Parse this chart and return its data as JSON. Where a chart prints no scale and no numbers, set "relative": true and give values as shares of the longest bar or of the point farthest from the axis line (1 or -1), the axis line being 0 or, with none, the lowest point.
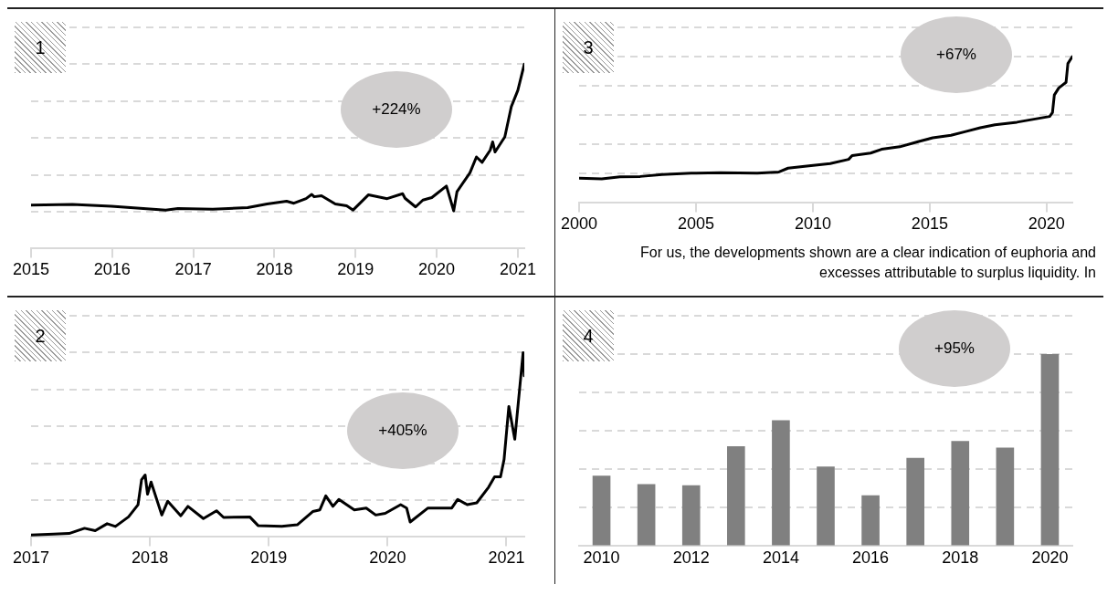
{
  "chart_data": [
    {
      "type": "line",
      "relative": true,
      "color": "#000000",
      "grid": "y",
      "xlim": [
        2015,
        2021.08
      ],
      "xticks": [
        2015,
        2016,
        2017,
        2018,
        2019,
        2020,
        2021
      ],
      "annotations": [
        "1",
        "+224%"
      ],
      "x": [
        2015.0,
        2015.51,
        2015.99,
        2016.66,
        2016.81,
        2017.24,
        2017.67,
        2017.91,
        2018.15,
        2018.24,
        2018.39,
        2018.46,
        2018.49,
        2018.58,
        2018.75,
        2018.89,
        2018.97,
        2019.16,
        2019.39,
        2019.58,
        2019.61,
        2019.74,
        2019.83,
        2019.94,
        2019.99,
        2020.12,
        2020.21,
        2020.25,
        2020.41,
        2020.49,
        2020.56,
        2020.66,
        2020.69,
        2020.72,
        2020.84,
        2020.92,
        2021.0,
        2021.08
      ],
      "values": [
        0.236,
        0.24,
        0.23,
        0.209,
        0.217,
        0.214,
        0.222,
        0.242,
        0.257,
        0.246,
        0.271,
        0.294,
        0.281,
        0.287,
        0.242,
        0.232,
        0.209,
        0.292,
        0.271,
        0.298,
        0.273,
        0.226,
        0.263,
        0.277,
        0.294,
        0.339,
        0.205,
        0.308,
        0.411,
        0.497,
        0.468,
        0.534,
        0.579,
        0.524,
        0.606,
        0.77,
        0.858,
        1.0
      ]
    },
    {
      "type": "line",
      "relative": true,
      "color": "#000000",
      "grid": "y",
      "xlim": [
        2000,
        2021.1
      ],
      "xticks": [
        2000,
        2005,
        2010,
        2015,
        2020
      ],
      "annotations": [
        "3",
        "+67%",
        "For us, the developments shown are a clear indication of euphoria and excesses attributable to surplus liquidity. In"
      ],
      "x": [
        2000.0,
        2000.97,
        2001.75,
        2002.61,
        2003.55,
        2004.8,
        2006.05,
        2007.62,
        2008.55,
        2008.94,
        2009.65,
        2010.74,
        2011.53,
        2011.68,
        2012.47,
        2012.94,
        2013.72,
        2014.5,
        2015.13,
        2015.91,
        2016.54,
        2017.16,
        2017.79,
        2018.73,
        2019.51,
        2020.13,
        2020.25,
        2020.33,
        2020.52,
        2020.83,
        2020.91,
        2021.1
      ],
      "values": [
        0.169,
        0.164,
        0.178,
        0.181,
        0.195,
        0.203,
        0.207,
        0.203,
        0.212,
        0.238,
        0.25,
        0.269,
        0.298,
        0.324,
        0.341,
        0.367,
        0.384,
        0.419,
        0.445,
        0.462,
        0.488,
        0.514,
        0.534,
        0.552,
        0.574,
        0.591,
        0.617,
        0.738,
        0.786,
        0.824,
        0.953,
        1.0
      ]
    },
    {
      "type": "line",
      "relative": true,
      "color": "#000000",
      "grid": "y",
      "xlim": [
        2017,
        2021.15
      ],
      "xticks": [
        2017,
        2018,
        2019,
        2020,
        2021
      ],
      "annotations": [
        "2",
        "+405%"
      ],
      "x": [
        2017.0,
        2017.19,
        2017.32,
        2017.45,
        2017.54,
        2017.64,
        2017.71,
        2017.82,
        2017.9,
        2017.93,
        2017.96,
        2017.98,
        2018.01,
        2018.1,
        2018.15,
        2018.26,
        2018.32,
        2018.45,
        2018.56,
        2018.62,
        2018.84,
        2018.91,
        2019.11,
        2019.24,
        2019.37,
        2019.43,
        2019.48,
        2019.54,
        2019.59,
        2019.72,
        2019.82,
        2019.9,
        2019.98,
        2020.11,
        2020.16,
        2020.19,
        2020.34,
        2020.54,
        2020.59,
        2020.67,
        2020.75,
        2020.85,
        2020.9,
        2020.95,
        2020.98,
        2021.02,
        2021.07,
        2021.11,
        2021.14,
        2021.15
      ],
      "values": [
        0.011,
        0.015,
        0.019,
        0.047,
        0.034,
        0.072,
        0.057,
        0.109,
        0.175,
        0.311,
        0.336,
        0.232,
        0.298,
        0.119,
        0.194,
        0.115,
        0.166,
        0.1,
        0.142,
        0.106,
        0.109,
        0.062,
        0.058,
        0.066,
        0.138,
        0.147,
        0.223,
        0.166,
        0.204,
        0.147,
        0.157,
        0.119,
        0.128,
        0.175,
        0.157,
        0.081,
        0.157,
        0.157,
        0.204,
        0.175,
        0.185,
        0.27,
        0.326,
        0.326,
        0.421,
        0.708,
        0.53,
        0.798,
        1.0,
        0.874
      ]
    },
    {
      "type": "bar",
      "relative": true,
      "color": "#808080",
      "grid": "y",
      "annotations": [
        "4",
        "+95%"
      ],
      "categories": [
        "2010",
        null,
        "2012",
        null,
        "2014",
        null,
        "2016",
        null,
        "2018",
        null,
        "2020"
      ],
      "values": [
        0.367,
        0.323,
        0.317,
        0.52,
        0.656,
        0.414,
        0.265,
        0.459,
        0.547,
        0.513,
        1.0
      ]
    }
  ]
}
